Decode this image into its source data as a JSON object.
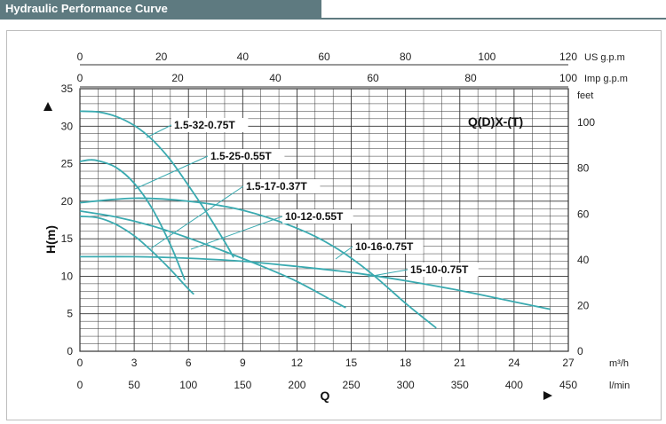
{
  "header": {
    "title": "Hydraulic Performance Curve"
  },
  "chart_data": {
    "type": "line",
    "title": "",
    "model_label": "Q(D)X-(T)",
    "colors": {
      "curve": "#3aaab0",
      "grid": "#333333",
      "label_line": "#3aaab0"
    },
    "axes": {
      "bottom_primary": {
        "label": "Q",
        "unit": "m³/h",
        "range": [
          0,
          27
        ],
        "ticks": [
          "0",
          "3",
          "6",
          "9",
          "12",
          "15",
          "18",
          "21",
          "24",
          "27"
        ]
      },
      "bottom_secondary": {
        "unit": "l/min",
        "range": [
          0,
          450
        ],
        "ticks": [
          "0",
          "50",
          "100",
          "150",
          "200",
          "250",
          "300",
          "350",
          "400",
          "450"
        ]
      },
      "top_primary": {
        "unit": "US g.p.m",
        "range": [
          0,
          120
        ],
        "ticks": [
          "0",
          "20",
          "40",
          "60",
          "80",
          "100",
          "120"
        ]
      },
      "top_secondary": {
        "unit": "Imp g.p.m",
        "range": [
          0,
          100
        ],
        "ticks": [
          "0",
          "20",
          "40",
          "60",
          "80",
          "100"
        ]
      },
      "left": {
        "label": "H(m)",
        "range": [
          0,
          35
        ],
        "ticks": [
          "0",
          "5",
          "10",
          "15",
          "20",
          "25",
          "30",
          "35"
        ]
      },
      "right": {
        "unit": "feet",
        "range": [
          0,
          114.8
        ],
        "ticks": [
          "0",
          "20",
          "40",
          "60",
          "80",
          "100"
        ]
      }
    },
    "grid": true,
    "series": [
      {
        "name": "1.5-32-0.75T",
        "x": [
          0,
          1,
          2,
          3,
          4,
          5,
          6,
          7,
          8,
          8.5
        ],
        "y": [
          32,
          31.9,
          31.3,
          30.1,
          28.2,
          25.5,
          22.1,
          18.5,
          14.6,
          12.5
        ]
      },
      {
        "name": "1.5-25-0.55T",
        "x": [
          0,
          0.5,
          1,
          2,
          3,
          4,
          5,
          5.8
        ],
        "y": [
          25.3,
          25.5,
          25.4,
          24.5,
          22.4,
          19,
          14.2,
          9.5
        ]
      },
      {
        "name": "1.5-17-0.37T",
        "x": [
          0,
          1,
          2,
          3,
          4,
          5,
          6,
          6.3
        ],
        "y": [
          18,
          17.8,
          16.9,
          15.4,
          13.3,
          10.9,
          8.3,
          7.6
        ]
      },
      {
        "name": "10-12-0.55T",
        "x": [
          0,
          2,
          4,
          6,
          8,
          10,
          12,
          14,
          14.7
        ],
        "y": [
          18.7,
          17.9,
          16.7,
          15.1,
          13.3,
          11.4,
          9.3,
          6.7,
          5.8
        ]
      },
      {
        "name": "10-16-0.75T",
        "x": [
          0,
          3,
          6,
          9,
          12,
          14,
          16,
          18,
          19.7
        ],
        "y": [
          19.8,
          20.4,
          20,
          18.8,
          16.4,
          14,
          10.6,
          6.4,
          3.1
        ]
      },
      {
        "name": "15-10-0.75T",
        "x": [
          0,
          3,
          6,
          9,
          12,
          15,
          18,
          21,
          24,
          26
        ],
        "y": [
          12.6,
          12.6,
          12.4,
          12,
          11.3,
          10.5,
          9.4,
          8.1,
          6.6,
          5.6
        ]
      }
    ],
    "annotations": [
      {
        "text": "1.5-32-0.75T",
        "series": "1.5-32-0.75T"
      },
      {
        "text": "1.5-25-0.55T",
        "series": "1.5-25-0.55T"
      },
      {
        "text": "1.5-17-0.37T",
        "series": "1.5-17-0.37T"
      },
      {
        "text": "10-12-0.55T",
        "series": "10-12-0.55T"
      },
      {
        "text": "10-16-0.75T",
        "series": "10-16-0.75T"
      },
      {
        "text": "15-10-0.75T",
        "series": "15-10-0.75T"
      }
    ]
  }
}
